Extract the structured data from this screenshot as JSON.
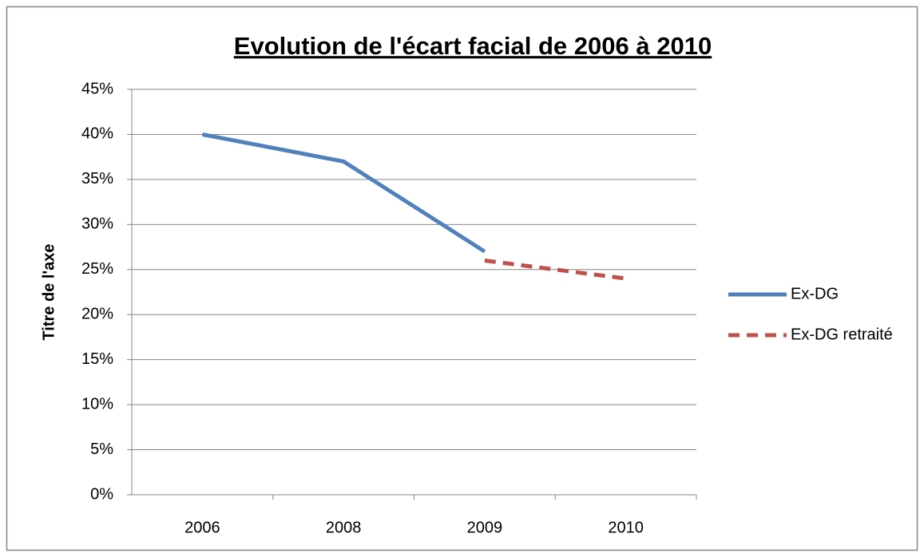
{
  "chart_data": {
    "type": "line",
    "title": "Evolution de l'écart facial de 2006 à 2010",
    "ylabel": "Titre de l'axe",
    "categories": [
      "2006",
      "2008",
      "2009",
      "2010"
    ],
    "series": [
      {
        "name": "Ex-DG",
        "color": "#4f81bd",
        "line_style": "solid",
        "values": [
          40,
          37,
          27,
          null
        ]
      },
      {
        "name": "Ex-DG retraité",
        "color": "#c0504d",
        "line_style": "dashed",
        "values": [
          null,
          null,
          26,
          24
        ]
      }
    ],
    "ylim": [
      0,
      45
    ],
    "yticks": [
      {
        "value": 0,
        "label": "0%"
      },
      {
        "value": 5,
        "label": "5%"
      },
      {
        "value": 10,
        "label": "10%"
      },
      {
        "value": 15,
        "label": "15%"
      },
      {
        "value": 20,
        "label": "20%"
      },
      {
        "value": 25,
        "label": "25%"
      },
      {
        "value": 30,
        "label": "30%"
      },
      {
        "value": 35,
        "label": "35%"
      },
      {
        "value": 40,
        "label": "40%"
      },
      {
        "value": 45,
        "label": "45%"
      }
    ],
    "grid": true,
    "legend": "right"
  }
}
